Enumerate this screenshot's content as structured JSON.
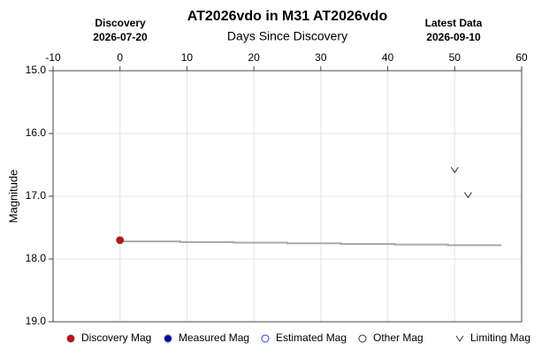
{
  "chart_data": {
    "type": "scatter",
    "title": "AT2026vdo in M31 AT2026vdo",
    "xlabel": "Days Since Discovery",
    "ylabel": "Magnitude",
    "annotations": [
      {
        "label": "Discovery",
        "date": "2026-07-20"
      },
      {
        "label": "Latest Data",
        "date": "2026-09-10"
      }
    ],
    "xlim": [
      -10,
      60
    ],
    "xticks": [
      -10,
      0,
      10,
      20,
      30,
      40,
      50,
      60
    ],
    "ylim": [
      15,
      19
    ],
    "y_inverted": true,
    "yticks": [
      {
        "value": 15,
        "label": "15.0"
      },
      {
        "value": 16,
        "label": "16.0"
      },
      {
        "value": 17,
        "label": "17.0"
      },
      {
        "value": 18,
        "label": "18.0"
      },
      {
        "value": 19,
        "label": "19.0"
      }
    ],
    "grid": true,
    "trend": {
      "color": "#a8a8a8",
      "x": [
        0,
        9,
        9,
        17,
        17,
        25,
        25,
        33,
        33,
        41,
        41,
        49,
        49,
        57
      ],
      "values": [
        17.72,
        17.72,
        17.73,
        17.73,
        17.74,
        17.74,
        17.75,
        17.75,
        17.76,
        17.76,
        17.77,
        17.77,
        17.78,
        17.78
      ]
    },
    "series": [
      {
        "name": "Discovery Mag",
        "color": "#e00000",
        "marker": "filled-circle",
        "x": [
          0
        ],
        "values": [
          17.7
        ]
      },
      {
        "name": "Measured Mag",
        "color": "#0000c0",
        "marker": "filled-circle",
        "x": [],
        "values": []
      },
      {
        "name": "Estimated Mag",
        "color": "#2040ff",
        "marker": "open-circle",
        "x": [],
        "values": []
      },
      {
        "name": "Other Mag",
        "color": "#333333",
        "marker": "open-circle",
        "x": [],
        "values": []
      },
      {
        "name": "Limiting Mag",
        "color": "#333333",
        "marker": "v",
        "x": [
          50,
          52
        ],
        "values": [
          16.58,
          16.98
        ]
      }
    ]
  }
}
